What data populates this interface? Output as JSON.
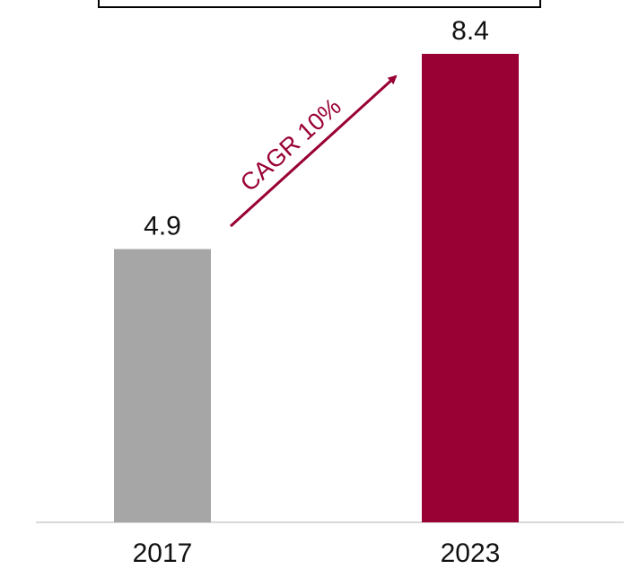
{
  "chart_data": {
    "type": "bar",
    "categories": [
      "2017",
      "2023"
    ],
    "values": [
      4.9,
      8.4
    ],
    "value_labels": [
      "4.9",
      "8.4"
    ],
    "bar_colors": [
      "#a6a6a6",
      "#990033"
    ],
    "annotation": {
      "text": "CAGR 10%",
      "color": "#990033"
    },
    "title": "",
    "xlabel": "",
    "ylabel": "",
    "ylim": [
      0,
      8.4
    ],
    "grid": false,
    "legend": "none"
  }
}
